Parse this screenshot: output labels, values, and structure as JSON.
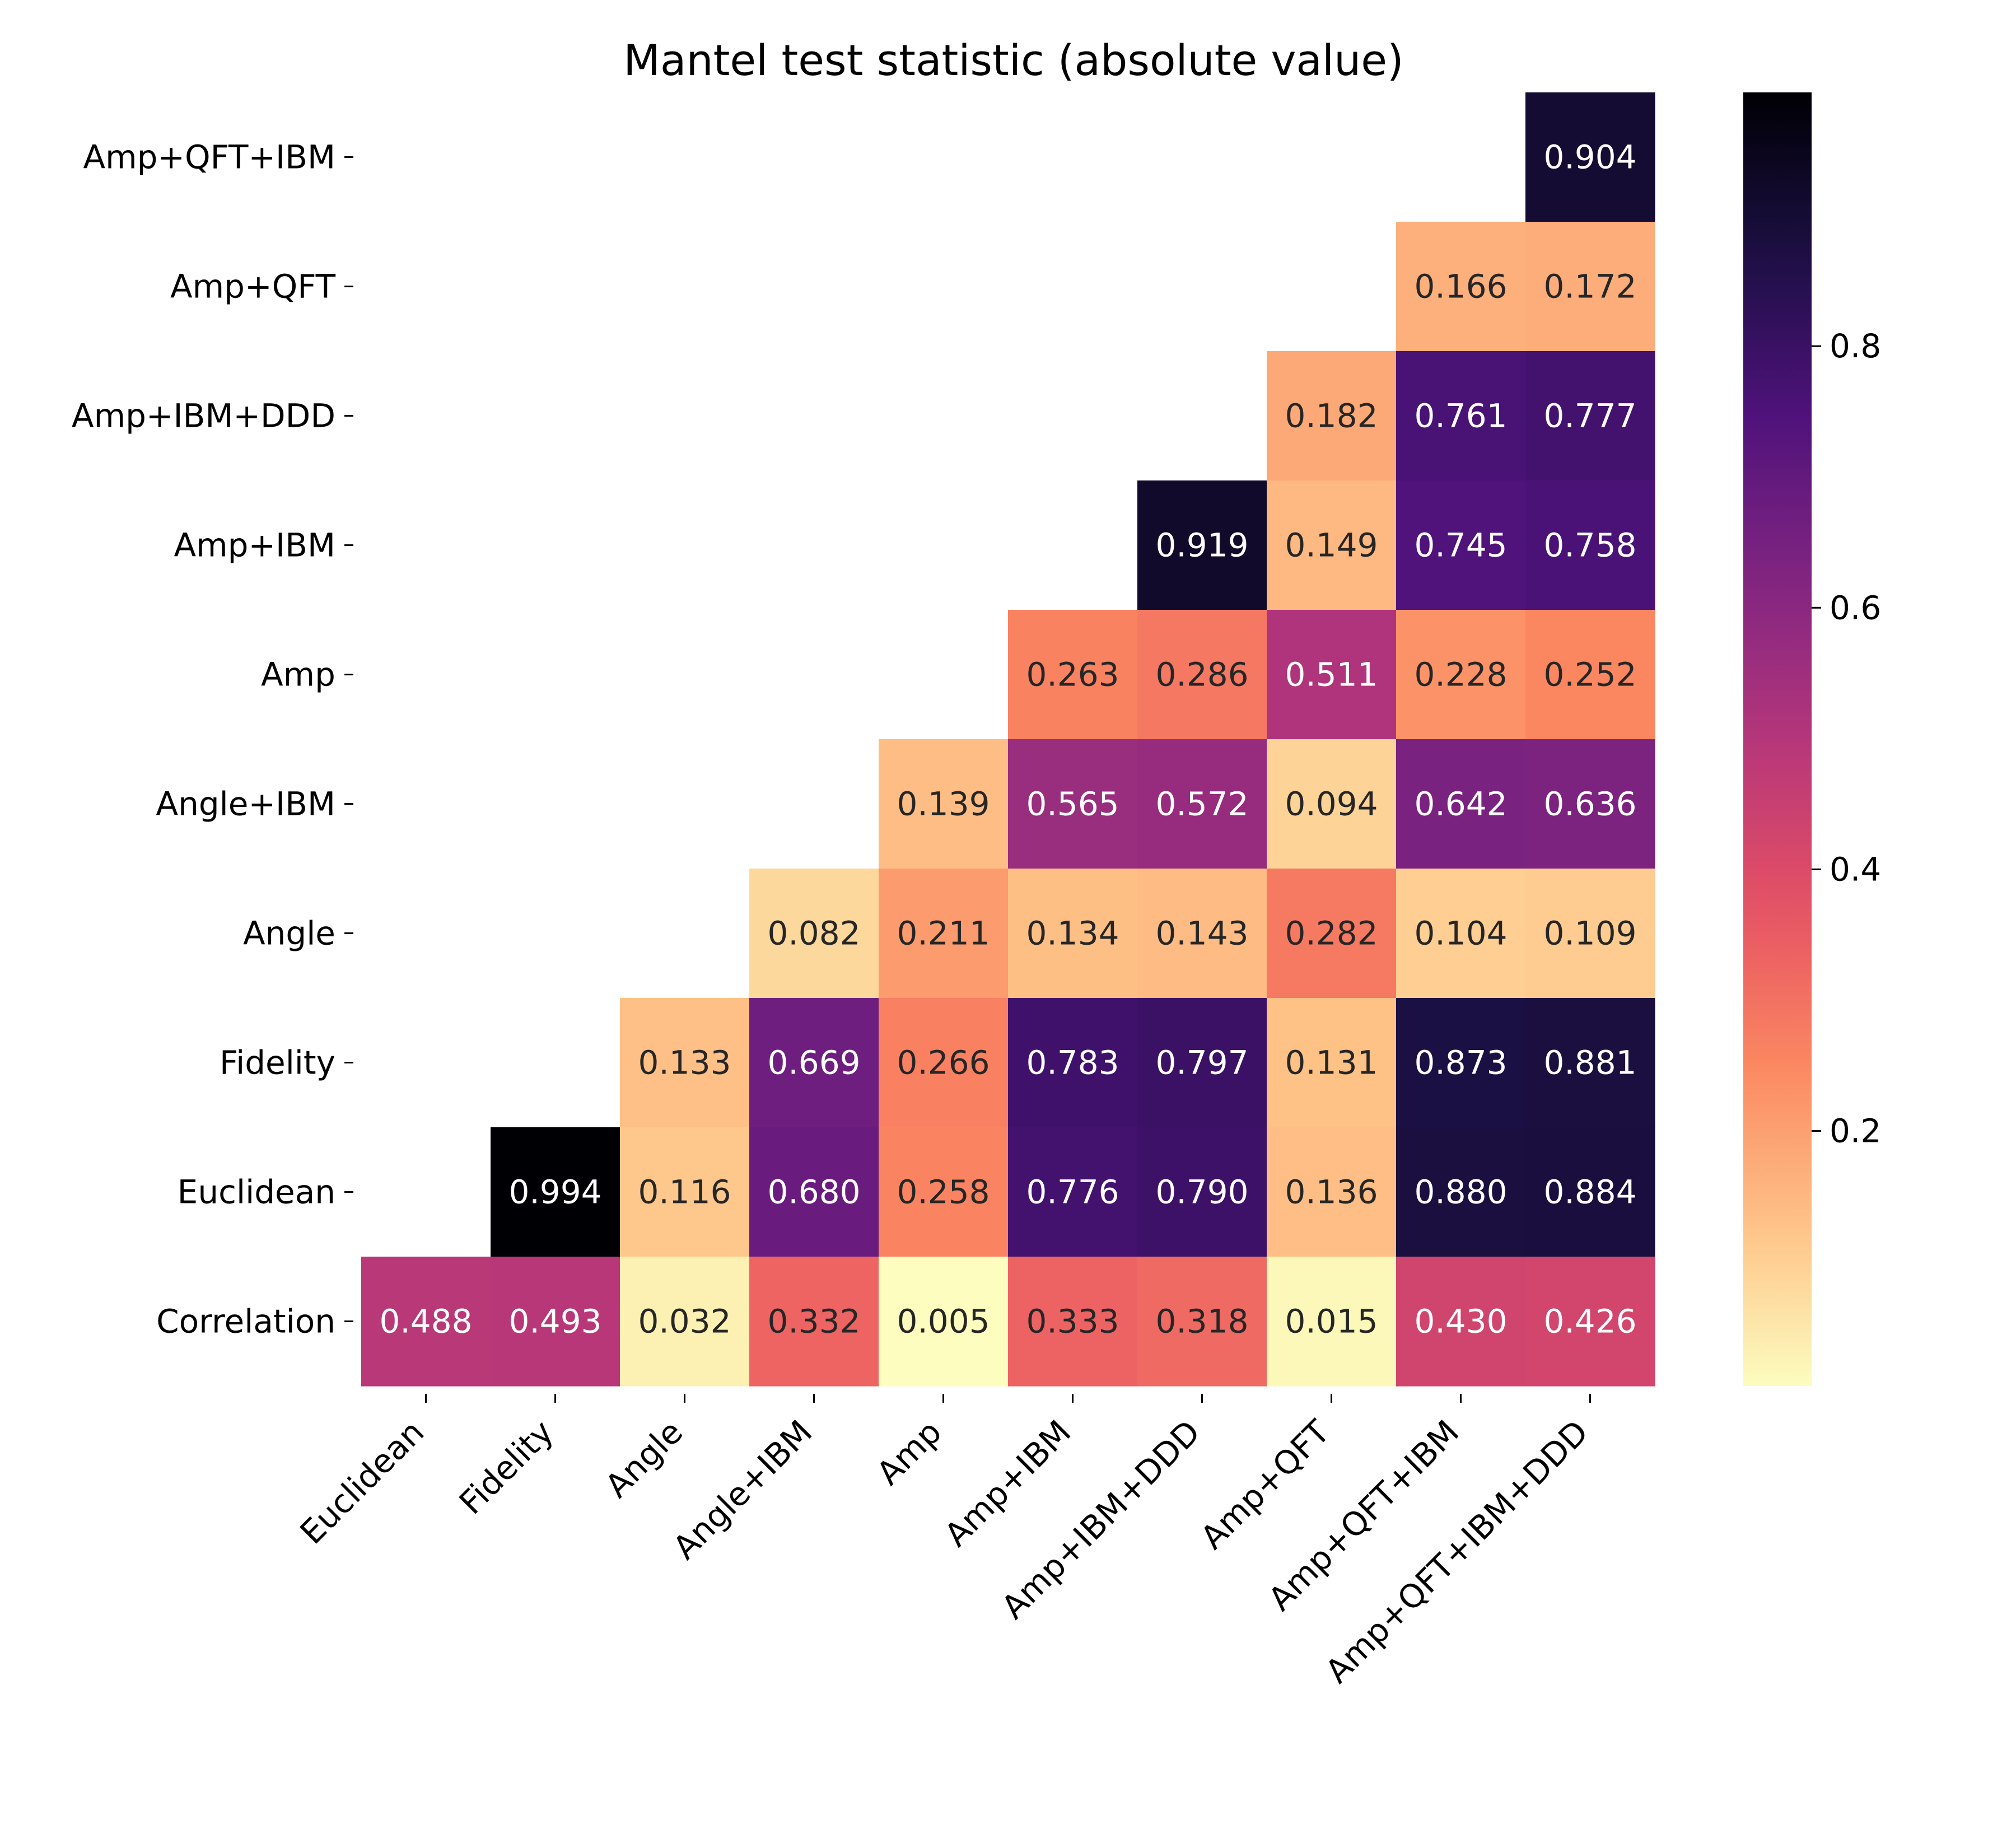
{
  "chart_data": {
    "type": "heatmap",
    "title": "Mantel test statistic (absolute value)",
    "xlabel": "",
    "ylabel": "",
    "x_categories": [
      "Euclidean",
      "Fidelity",
      "Angle",
      "Angle+IBM",
      "Amp",
      "Amp+IBM",
      "Amp+IBM+DDD",
      "Amp+QFT",
      "Amp+QFT+IBM",
      "Amp+QFT+IBM+DDD"
    ],
    "y_categories": [
      "Amp+QFT+IBM",
      "Amp+QFT",
      "Amp+IBM+DDD",
      "Amp+IBM",
      "Amp",
      "Angle+IBM",
      "Angle",
      "Fidelity",
      "Euclidean",
      "Correlation"
    ],
    "values": [
      [
        null,
        null,
        null,
        null,
        null,
        null,
        null,
        null,
        null,
        0.904
      ],
      [
        null,
        null,
        null,
        null,
        null,
        null,
        null,
        null,
        0.166,
        0.172
      ],
      [
        null,
        null,
        null,
        null,
        null,
        null,
        null,
        0.182,
        0.761,
        0.777
      ],
      [
        null,
        null,
        null,
        null,
        null,
        null,
        0.919,
        0.149,
        0.745,
        0.758
      ],
      [
        null,
        null,
        null,
        null,
        null,
        0.263,
        0.286,
        0.511,
        0.228,
        0.252
      ],
      [
        null,
        null,
        null,
        null,
        0.139,
        0.565,
        0.572,
        0.094,
        0.642,
        0.636
      ],
      [
        null,
        null,
        null,
        0.082,
        0.211,
        0.134,
        0.143,
        0.282,
        0.104,
        0.109
      ],
      [
        null,
        null,
        0.133,
        0.669,
        0.266,
        0.783,
        0.797,
        0.131,
        0.873,
        0.881
      ],
      [
        null,
        0.994,
        0.116,
        0.68,
        0.258,
        0.776,
        0.79,
        0.136,
        0.88,
        0.884
      ],
      [
        0.488,
        0.493,
        0.032,
        0.332,
        0.005,
        0.333,
        0.318,
        0.015,
        0.43,
        0.426
      ]
    ],
    "value_format": "3 decimals",
    "colormap": "magma_r",
    "vmin": 0.005,
    "vmax": 0.994,
    "colorbar": {
      "ticks": [
        0.2,
        0.4,
        0.6,
        0.8
      ],
      "tick_labels": [
        "0.2",
        "0.4",
        "0.6",
        "0.8"
      ],
      "placement": "right"
    },
    "grid": false,
    "legend": "none",
    "x_tick_rotation": "45 degrees"
  }
}
